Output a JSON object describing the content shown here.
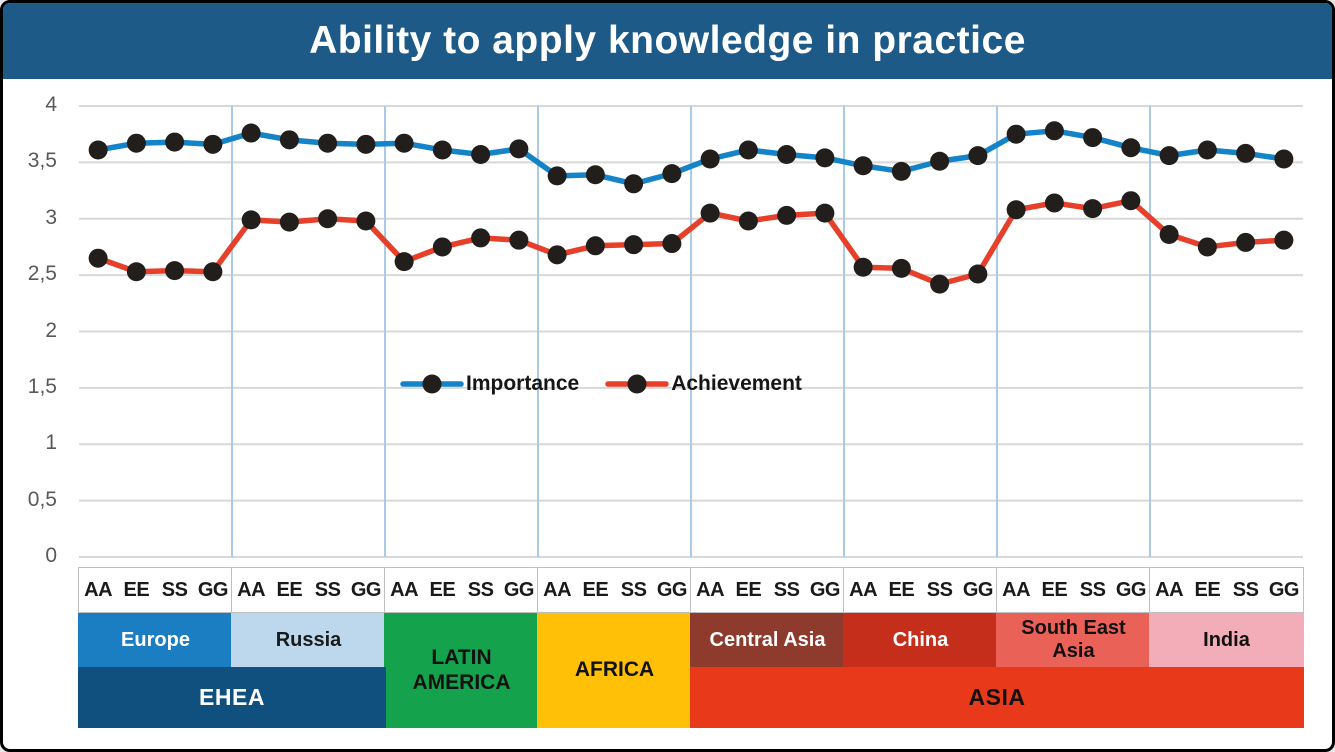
{
  "title": "Ability to apply knowledge in practice",
  "colors": {
    "title_bar": "#1D5A88",
    "plot_background": "#FFFFFF",
    "horizontal_grid": "#D8D8D8",
    "vertical_grid": "#A9CBE9",
    "axis_text": "#595959",
    "tick_text": "#1A1A1A",
    "marker": "#211E1B",
    "frame": "#000000"
  },
  "chart_data": {
    "type": "line",
    "title": "Ability to apply knowledge in practice",
    "ylim": [
      0,
      4
    ],
    "y_tick_labels": [
      "4",
      "3,5",
      "3",
      "2,5",
      "2",
      "1,5",
      "1",
      "0,5",
      "0"
    ],
    "grid": "on",
    "legend_position": "inside-center",
    "subcategories": [
      "AA",
      "EE",
      "SS",
      "GG"
    ],
    "group_names": [
      "Europe",
      "Russia",
      "Latin America",
      "Africa",
      "Central Asia",
      "China",
      "South East Asia",
      "India"
    ],
    "marker_color": "#211E1B",
    "series": [
      {
        "name": "Importance",
        "color": "#1483C8",
        "values": [
          3.61,
          3.67,
          3.68,
          3.66,
          3.76,
          3.7,
          3.67,
          3.66,
          3.67,
          3.61,
          3.57,
          3.62,
          3.38,
          3.39,
          3.31,
          3.4,
          3.53,
          3.61,
          3.57,
          3.54,
          3.47,
          3.42,
          3.51,
          3.56,
          3.75,
          3.78,
          3.72,
          3.63,
          3.56,
          3.61,
          3.58,
          3.53
        ]
      },
      {
        "name": "Achievement",
        "color": "#E6402A",
        "values": [
          2.65,
          2.53,
          2.54,
          2.53,
          2.99,
          2.97,
          3.0,
          2.98,
          2.62,
          2.75,
          2.83,
          2.81,
          2.68,
          2.76,
          2.77,
          2.78,
          3.05,
          2.98,
          3.03,
          3.05,
          2.57,
          2.56,
          2.42,
          2.51,
          3.08,
          3.14,
          3.09,
          3.16,
          2.86,
          2.75,
          2.79,
          2.81
        ]
      }
    ]
  },
  "bands": {
    "region_row": [
      {
        "label": "Europe",
        "bg": "#1B7DC2",
        "fg": "#FFFFFF",
        "rows": 1
      },
      {
        "label": "Russia",
        "bg": "#BDD8EC",
        "fg": "#1A1A1A",
        "rows": 1
      },
      {
        "label": "LATIN\nAMERICA",
        "bg": "#14A24C",
        "fg": "#111111",
        "rows": 2
      },
      {
        "label": "AFRICA",
        "bg": "#FFC007",
        "fg": "#111111",
        "rows": 2
      },
      {
        "label": "Central Asia",
        "bg": "#8E3A2D",
        "fg": "#FFFFFF",
        "rows": 1
      },
      {
        "label": "China",
        "bg": "#C62E1C",
        "fg": "#FFFFFF",
        "rows": 1
      },
      {
        "label": "South East\nAsia",
        "bg": "#EA6157",
        "fg": "#111111",
        "rows": 1
      },
      {
        "label": "India",
        "bg": "#F2ADB8",
        "fg": "#111111",
        "rows": 1
      }
    ],
    "continent_row": [
      {
        "label": "EHEA",
        "bg": "#10507F",
        "fg": "#FFFFFF",
        "start": 0,
        "span": 2
      },
      {
        "label": "ASIA",
        "bg": "#E8391B",
        "fg": "#111111",
        "start": 4,
        "span": 4
      }
    ]
  }
}
